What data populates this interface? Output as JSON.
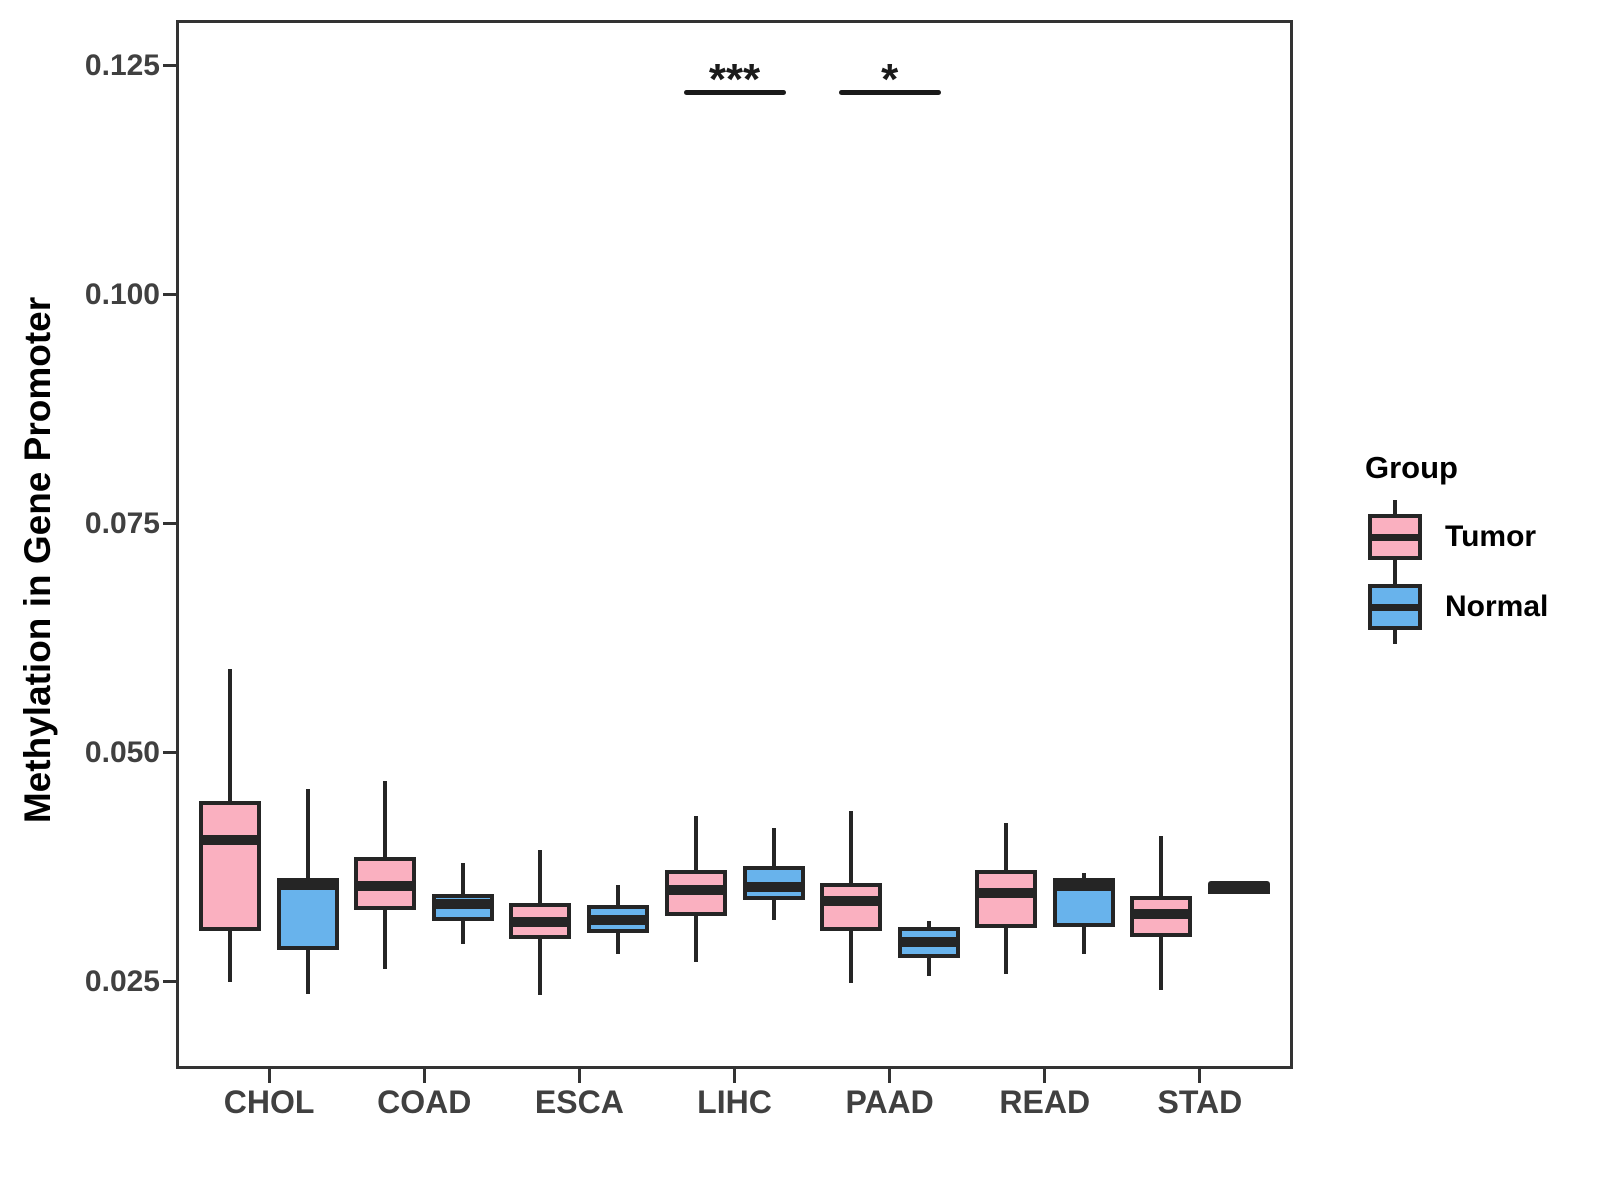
{
  "figure": {
    "background": "#FFFFFF",
    "legend": {
      "title": "Group",
      "items": [
        {
          "label": "Tumor",
          "color": "#FAB0C0"
        },
        {
          "label": "Normal",
          "color": "#68B3EC"
        }
      ]
    },
    "colors": {
      "box_outline": "#252525",
      "axis": "#333333",
      "tick_label": "#404040",
      "annotation": "#1A1A1A"
    }
  },
  "chart_data": {
    "type": "box",
    "title": "",
    "xlabel": "",
    "ylabel": "Methylation in Gene Promoter",
    "grid": false,
    "legend_position": "right",
    "categories": [
      "CHOL",
      "COAD",
      "ESCA",
      "LIHC",
      "PAAD",
      "READ",
      "STAD"
    ],
    "ylim": [
      0.0155,
      0.13
    ],
    "x_padding": 0.6,
    "yticks": [
      {
        "value": 0.025,
        "label": "0.025"
      },
      {
        "value": 0.05,
        "label": "0.050"
      },
      {
        "value": 0.075,
        "label": "0.075"
      },
      {
        "value": 0.1,
        "label": "0.100"
      },
      {
        "value": 0.125,
        "label": "0.125"
      }
    ],
    "series": [
      {
        "name": "Tumor",
        "color": "#FAB0C0",
        "boxes": [
          {
            "low": 0.025,
            "q1": 0.0306,
            "median": 0.0405,
            "q3": 0.0448,
            "high": 0.0592
          },
          {
            "low": 0.0264,
            "q1": 0.0329,
            "median": 0.0355,
            "q3": 0.0386,
            "high": 0.0469
          },
          {
            "low": 0.0236,
            "q1": 0.0297,
            "median": 0.0315,
            "q3": 0.0336,
            "high": 0.0394
          },
          {
            "low": 0.0272,
            "q1": 0.0322,
            "median": 0.035,
            "q3": 0.0372,
            "high": 0.0431
          },
          {
            "low": 0.0249,
            "q1": 0.0306,
            "median": 0.0338,
            "q3": 0.0358,
            "high": 0.0437
          },
          {
            "low": 0.0259,
            "q1": 0.0309,
            "median": 0.0347,
            "q3": 0.0372,
            "high": 0.0424
          },
          {
            "low": 0.0241,
            "q1": 0.0299,
            "median": 0.0324,
            "q3": 0.0344,
            "high": 0.0409
          }
        ]
      },
      {
        "name": "Normal",
        "color": "#68B3EC",
        "boxes": [
          {
            "low": 0.0237,
            "q1": 0.0285,
            "median": 0.0356,
            "q3": 0.0363,
            "high": 0.0461
          },
          {
            "low": 0.0291,
            "q1": 0.0317,
            "median": 0.0335,
            "q3": 0.0346,
            "high": 0.038
          },
          {
            "low": 0.0281,
            "q1": 0.0303,
            "median": 0.0318,
            "q3": 0.0334,
            "high": 0.0356
          },
          {
            "low": 0.0318,
            "q1": 0.034,
            "median": 0.0354,
            "q3": 0.0377,
            "high": 0.0418
          },
          {
            "low": 0.0257,
            "q1": 0.0276,
            "median": 0.0294,
            "q3": 0.031,
            "high": 0.0316
          },
          {
            "low": 0.0281,
            "q1": 0.031,
            "median": 0.0355,
            "q3": 0.0363,
            "high": 0.0369
          },
          {
            "low": 0.0355,
            "q1": 0.0355,
            "median": 0.0355,
            "q3": 0.0355,
            "high": 0.0355
          }
        ]
      }
    ],
    "annotations": [
      {
        "label": "***",
        "category": "LIHC",
        "bar_y": 0.1224
      },
      {
        "label": "*",
        "category": "PAAD",
        "bar_y": 0.1224
      }
    ]
  }
}
